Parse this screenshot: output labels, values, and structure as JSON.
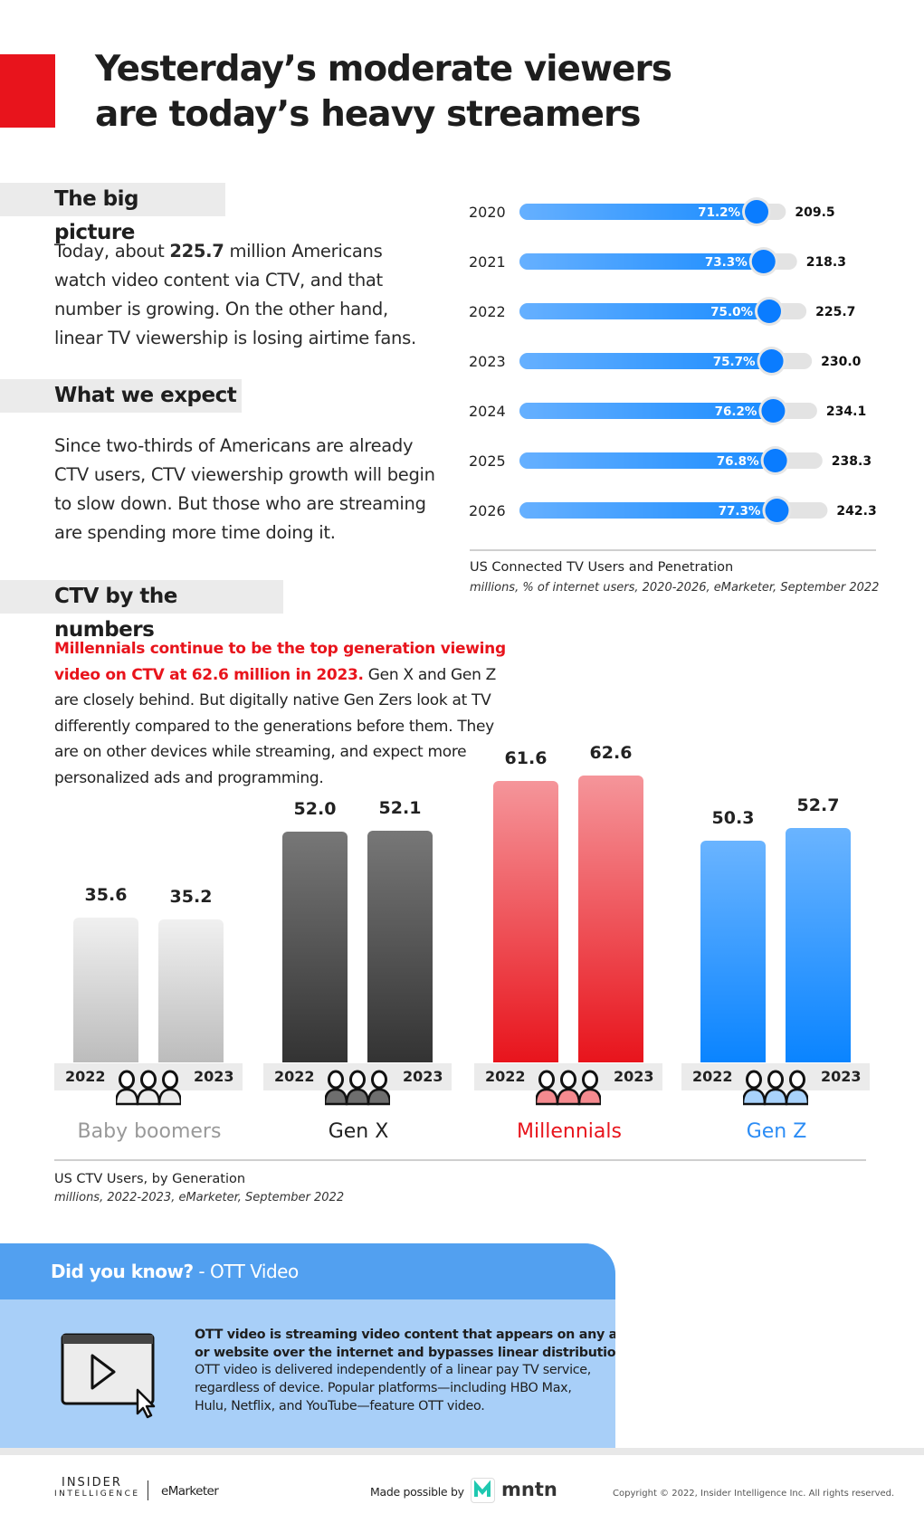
{
  "header": {
    "title_lines": [
      "Yesterday’s moderate viewers",
      "are today’s heavy streamers"
    ],
    "accent": "#e8141c"
  },
  "big_picture": {
    "heading": "The big picture",
    "line1_pre": "Today, about ",
    "line1_bold": "225.7",
    "line1_post": " million Americans",
    "lines": [
      "watch video content via CTV, and that",
      "number is growing. On the other hand,",
      "linear TV viewership is losing airtime fans."
    ]
  },
  "expect": {
    "heading": "What we expect",
    "lines": [
      "Since two-thirds of Americans are already",
      "CTV users, CTV viewership growth will begin",
      "to slow down. But those who are streaming",
      "are spending more time doing it."
    ]
  },
  "numbers": {
    "heading": "CTV by the numbers",
    "red_line1": "Millennials continue to be the top generation viewing",
    "red_line2": "video on CTV at 62.6 million in 2023.",
    "line2_post": " Gen X and Gen Z",
    "lines": [
      "are closely behind. But digitally native Gen Zers look at TV",
      "differently compared to the generations before them. They",
      "are on other devices while streaming, and expect more",
      "personalized ads and programming."
    ]
  },
  "chart_data": [
    {
      "type": "bar",
      "orientation": "horizontal",
      "title": "US Connected TV Users and Penetration",
      "subtitle": "millions, % of internet users, 2020-2026, eMarketer, September 2022",
      "categories": [
        "2020",
        "2021",
        "2022",
        "2023",
        "2024",
        "2025",
        "2026"
      ],
      "series": [
        {
          "name": "users",
          "values": [
            209.5,
            218.3,
            225.7,
            230.0,
            234.1,
            238.3,
            242.3
          ],
          "labels": [
            "209.5",
            "218.3",
            "225.7",
            "230.0",
            "234.1",
            "238.3",
            "242.3"
          ]
        },
        {
          "name": "penetration",
          "values": [
            71.2,
            73.3,
            75.0,
            75.7,
            76.2,
            76.8,
            77.3
          ],
          "labels": [
            "71.2%",
            "73.3%",
            "75.0%",
            "75.7%",
            "76.2%",
            "76.8%",
            "77.3%"
          ]
        }
      ],
      "colors": {
        "fill": "#1a8cff",
        "track": "#e3e3e3",
        "dot": "#0a7cff"
      }
    },
    {
      "type": "bar",
      "title": "US CTV Users, by Generation",
      "subtitle": "millions, 2022-2023, eMarketer, September 2022",
      "groups": [
        {
          "name": "Baby boomers",
          "years": [
            "2022",
            "2023"
          ],
          "values": [
            35.6,
            35.2
          ],
          "labels": [
            "35.6",
            "35.2"
          ],
          "color_top": "#f0f0f0",
          "color_bottom": "#bcbcbc",
          "label_color": "#999999",
          "people_fill": "#ececec"
        },
        {
          "name": "Gen X",
          "years": [
            "2022",
            "2023"
          ],
          "values": [
            52.0,
            52.1
          ],
          "labels": [
            "52.0",
            "52.1"
          ],
          "color_top": "#777777",
          "color_bottom": "#333333",
          "label_color": "#222222",
          "people_fill": "#6e6e6e"
        },
        {
          "name": "Millennials",
          "years": [
            "2022",
            "2023"
          ],
          "values": [
            61.6,
            62.6
          ],
          "labels": [
            "61.6",
            "62.6"
          ],
          "color_top": "#f5959a",
          "color_bottom": "#e8141c",
          "label_color": "#e8141c",
          "people_fill": "#f58a8f"
        },
        {
          "name": "Gen Z",
          "years": [
            "2022",
            "2023"
          ],
          "values": [
            50.3,
            52.7
          ],
          "labels": [
            "50.3",
            "52.7"
          ],
          "color_top": "#6ab4ff",
          "color_bottom": "#0a84ff",
          "label_color": "#2b8cf5",
          "people_fill": "#a8d2fb"
        }
      ]
    }
  ],
  "did_you_know": {
    "heading_bold": "Did you know?",
    "heading_rest": " - OTT Video",
    "icon": "video-play-cursor-icon",
    "bold_lines": [
      "OTT video is streaming video content that appears on any app",
      "or website over the internet and bypasses linear distribution."
    ],
    "lines": [
      "OTT video is delivered independently of a linear pay TV service,",
      "regardless of device. Popular platforms—including HBO Max,",
      "Hulu, Netflix, and YouTube—feature OTT video."
    ]
  },
  "footer": {
    "logo1_top": "INSIDER",
    "logo1_bottom": "INTELLIGENCE",
    "logo2": "eMarketer",
    "made_by": "Made possible by",
    "sponsor": "mntn",
    "copyright": "Copyright © 2022, Insider Intelligence Inc. All rights reserved."
  }
}
